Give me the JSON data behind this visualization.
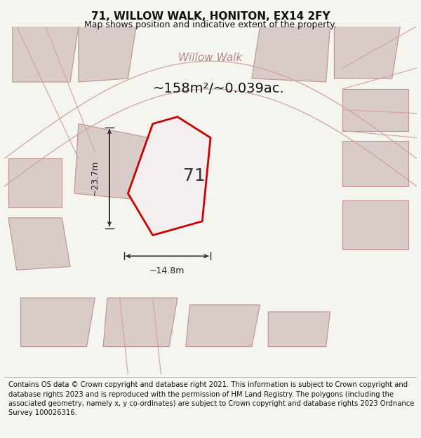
{
  "title_line1": "71, WILLOW WALK, HONITON, EX14 2FY",
  "title_line2": "Map shows position and indicative extent of the property.",
  "area_text": "~158m²/~0.039ac.",
  "width_text": "~14.8m",
  "height_text": "~23.7m",
  "label_71": "71",
  "footer_text": "Contains OS data © Crown copyright and database right 2021. This information is subject to Crown copyright and database rights 2023 and is reproduced with the permission of HM Land Registry. The polygons (including the associated geometry, namely x, y co-ordinates) are subject to Crown copyright and database rights 2023 Ordnance Survey 100026316.",
  "bg_color": "#f5f5f0",
  "map_bg": "#ece9e4",
  "neighbor_fill": "#d8cbc8",
  "neighbor_edge": "#c09090",
  "road_line": "#d4a0a0",
  "plot_fill": "#f5eeee",
  "plot_edge": "#cc0000",
  "dim_color": "#222222",
  "text_color": "#111111",
  "road_text_color": "#b08888",
  "title_fontsize": 11,
  "subtitle_fontsize": 9,
  "area_fontsize": 14,
  "dim_fontsize": 9,
  "label_fontsize": 18,
  "footer_fontsize": 7.2,
  "road_fontsize": 11
}
